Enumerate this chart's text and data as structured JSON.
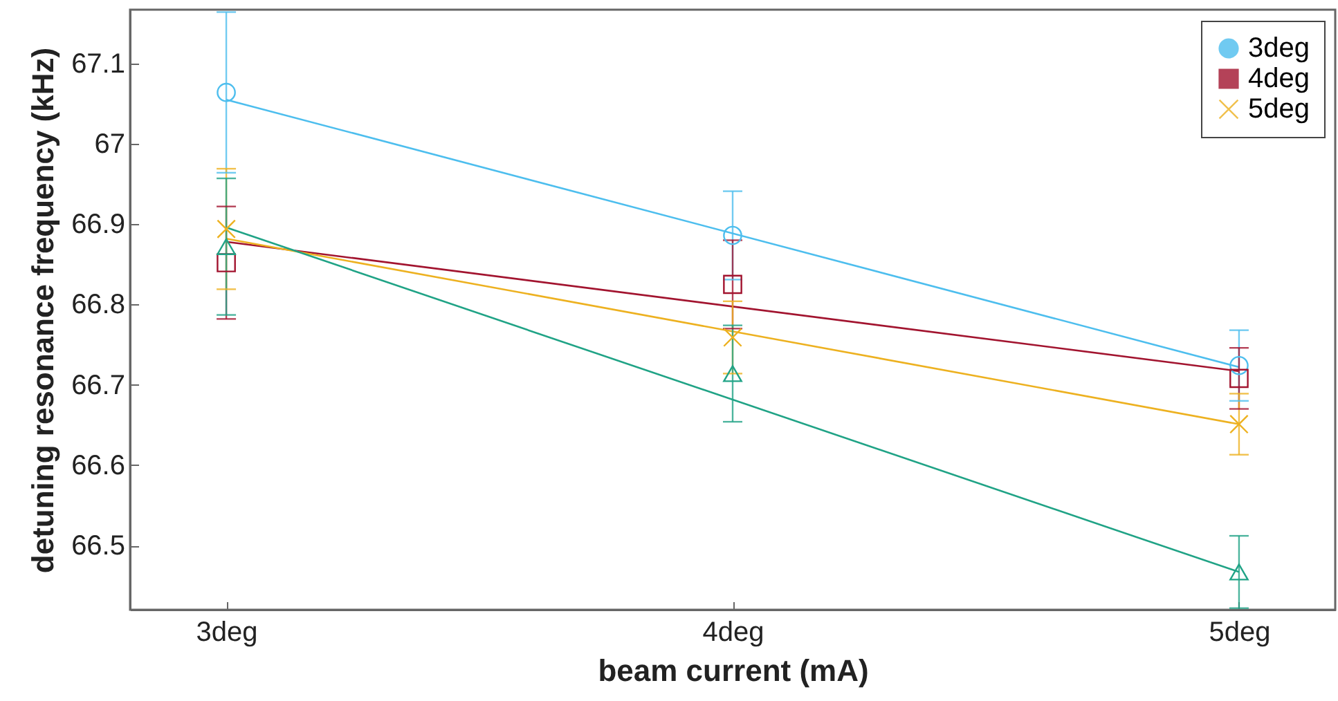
{
  "chart_data": {
    "type": "scatter",
    "xlabel": "beam current (mA)",
    "ylabel": "detuning resonance frequency (kHz)",
    "categories": [
      "3deg",
      "4deg",
      "5deg"
    ],
    "ylim": [
      66.42,
      67.167
    ],
    "yticks": [
      66.5,
      66.6,
      66.7,
      66.8,
      66.9,
      67,
      67.1
    ],
    "grid": false,
    "legend": "top right",
    "series": [
      {
        "name": "3deg",
        "marker": "circle",
        "color": "#4dbeee",
        "values": [
          67.064,
          66.886,
          66.724
        ],
        "errors": [
          0.1,
          0.055,
          0.044
        ]
      },
      {
        "name": "4deg",
        "marker": "square",
        "color": "#a2142f",
        "values": [
          66.852,
          66.825,
          66.708
        ],
        "errors": [
          0.07,
          0.055,
          0.038
        ]
      },
      {
        "name": "5deg",
        "marker": "cross",
        "color": "#edb120",
        "values": [
          66.894,
          66.759,
          66.651
        ],
        "errors": [
          0.075,
          0.045,
          0.038
        ]
      },
      {
        "marker": "triangle",
        "color": "#20a386",
        "values": [
          66.872,
          66.714,
          66.467
        ],
        "errors": [
          0.085,
          0.06,
          0.045
        ]
      },
      {
        "type": "line",
        "color": "#4dbeee",
        "x": [
          "3deg",
          "5deg"
        ],
        "values": [
          67.055,
          66.722
        ]
      },
      {
        "type": "line",
        "color": "#a2142f",
        "x": [
          "3deg",
          "5deg"
        ],
        "values": [
          66.878,
          66.717
        ]
      },
      {
        "type": "line",
        "color": "#edb120",
        "x": [
          "3deg",
          "5deg"
        ],
        "values": [
          66.882,
          66.651
        ]
      },
      {
        "type": "line",
        "color": "#20a386",
        "x": [
          "3deg",
          "5deg"
        ],
        "values": [
          66.896,
          66.467
        ]
      }
    ]
  }
}
